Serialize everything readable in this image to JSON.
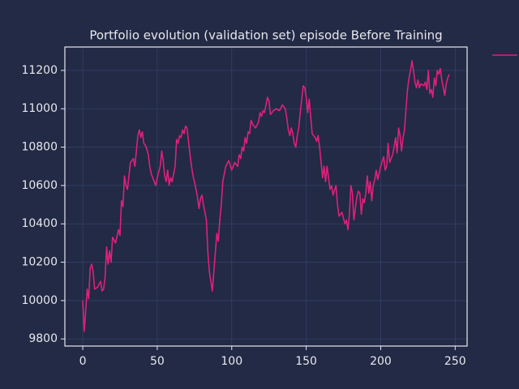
{
  "chart_data": {
    "type": "line",
    "title": "Portfolio evolution (validation set) episode Before Training",
    "x": [
      0,
      1,
      2,
      3,
      4,
      5,
      6,
      7,
      8,
      10,
      12,
      13,
      14,
      15,
      16,
      17,
      18,
      19,
      20,
      22,
      24,
      25,
      26,
      27,
      28,
      29,
      30,
      32,
      34,
      35,
      37,
      38,
      39,
      40,
      41,
      42,
      43,
      44,
      45,
      46,
      47,
      48,
      49,
      50,
      52,
      53,
      54,
      55,
      56,
      57,
      58,
      59,
      60,
      62,
      63,
      64,
      65,
      66,
      67,
      68,
      69,
      70,
      71,
      72,
      73,
      74,
      75,
      76,
      77,
      78,
      79,
      80,
      81,
      82,
      83,
      84,
      85,
      86,
      87,
      88,
      89,
      90,
      91,
      92,
      93,
      94,
      95,
      96,
      98,
      100,
      102,
      104,
      105,
      106,
      107,
      108,
      109,
      110,
      111,
      112,
      113,
      114,
      116,
      118,
      119,
      120,
      121,
      122,
      123,
      124,
      125,
      126,
      128,
      130,
      132,
      134,
      136,
      137,
      138,
      139,
      140,
      141,
      142,
      143,
      144,
      145,
      146,
      147,
      148,
      149,
      150,
      151,
      152,
      153,
      154,
      155,
      156,
      157,
      158,
      159,
      160,
      161,
      162,
      163,
      164,
      165,
      166,
      167,
      168,
      170,
      171,
      172,
      174,
      176,
      177,
      178,
      179,
      180,
      181,
      182,
      183,
      184,
      185,
      186,
      187,
      188,
      189,
      190,
      191,
      192,
      193,
      194,
      195,
      196,
      197,
      198,
      200,
      202,
      203,
      204,
      205,
      206,
      208,
      209,
      210,
      211,
      212,
      213,
      214,
      215,
      216,
      217,
      218,
      219,
      220,
      221,
      222,
      223,
      224,
      225,
      226,
      227,
      229,
      230,
      231,
      232,
      233,
      234,
      235,
      236,
      237,
      238,
      239,
      240,
      241,
      242,
      243,
      244,
      245,
      246
    ],
    "series": [
      {
        "color": "#e0207a",
        "values": [
          10000,
          9840,
          9950,
          10060,
          10010,
          10170,
          10190,
          10150,
          10060,
          10070,
          10100,
          10050,
          10060,
          10120,
          10280,
          10190,
          10260,
          10200,
          10330,
          10300,
          10370,
          10340,
          10520,
          10490,
          10650,
          10600,
          10580,
          10720,
          10740,
          10700,
          10860,
          10890,
          10850,
          10880,
          10820,
          10810,
          10790,
          10760,
          10700,
          10660,
          10640,
          10620,
          10600,
          10640,
          10700,
          10780,
          10730,
          10650,
          10620,
          10680,
          10600,
          10640,
          10620,
          10700,
          10840,
          10820,
          10860,
          10850,
          10890,
          10870,
          10910,
          10900,
          10830,
          10760,
          10700,
          10650,
          10620,
          10580,
          10540,
          10480,
          10530,
          10550,
          10500,
          10460,
          10420,
          10250,
          10150,
          10100,
          10050,
          10150,
          10250,
          10350,
          10310,
          10420,
          10500,
          10620,
          10660,
          10700,
          10730,
          10680,
          10720,
          10700,
          10760,
          10740,
          10800,
          10780,
          10850,
          10820,
          10880,
          10870,
          10940,
          10920,
          10900,
          10930,
          10980,
          10960,
          10990,
          10980,
          11020,
          11060,
          11040,
          10970,
          10990,
          11000,
          10990,
          11020,
          11000,
          10950,
          10890,
          10860,
          10900,
          10870,
          10820,
          10800,
          10860,
          10900,
          10980,
          11050,
          11120,
          11110,
          11060,
          10980,
          11050,
          10960,
          10870,
          10860,
          10850,
          10830,
          10860,
          10800,
          10720,
          10640,
          10700,
          10620,
          10700,
          10640,
          10580,
          10600,
          10550,
          10600,
          10500,
          10440,
          10460,
          10400,
          10420,
          10370,
          10450,
          10600,
          10560,
          10420,
          10480,
          10540,
          10570,
          10560,
          10450,
          10530,
          10510,
          10560,
          10650,
          10560,
          10620,
          10520,
          10600,
          10630,
          10680,
          10630,
          10700,
          10750,
          10680,
          10700,
          10820,
          10720,
          10760,
          10800,
          10850,
          10770,
          10900,
          10860,
          10780,
          10850,
          10890,
          11000,
          11100,
          11160,
          11200,
          11250,
          11200,
          11140,
          11110,
          11150,
          11110,
          11130,
          11120,
          11140,
          11100,
          11200,
          11080,
          11100,
          11060,
          11160,
          11120,
          11200,
          11180,
          11210,
          11150,
          11110,
          11070,
          11130,
          11160,
          11180
        ]
      }
    ],
    "xlim": [
      -12,
      258
    ],
    "xticks": [
      0,
      50,
      100,
      150,
      200,
      250
    ],
    "ylim": [
      9763,
      11322
    ],
    "yticks": [
      9800,
      10000,
      10200,
      10400,
      10600,
      10800,
      11000,
      11200
    ],
    "grid": true
  }
}
